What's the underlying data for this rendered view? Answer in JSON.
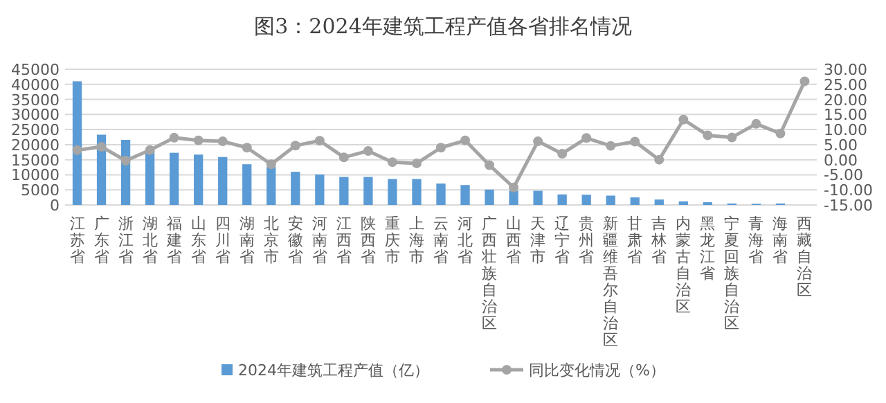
{
  "chart_data": {
    "type": "bar",
    "title": "图3：2024年建筑工程产值各省排名情况",
    "categories": [
      "江苏省",
      "广东省",
      "浙江省",
      "湖北省",
      "福建省",
      "山东省",
      "四川省",
      "湖南省",
      "北京市",
      "安徽省",
      "河南省",
      "江西省",
      "陕西省",
      "重庆市",
      "上海市",
      "云南省",
      "河北省",
      "广西壮族自治区",
      "山西省",
      "天津市",
      "辽宁省",
      "贵州省",
      "新疆维吾尔自治区",
      "甘肃省",
      "吉林省",
      "内蒙古自治区",
      "黑龙江省",
      "宁夏回族自治区",
      "青海省",
      "海南省",
      "西藏自治区"
    ],
    "series": [
      {
        "name": "2024年建筑工程产值（亿）",
        "color": "#5b9bd5",
        "values": [
          41000,
          23300,
          21600,
          18000,
          17300,
          16700,
          15900,
          13500,
          12600,
          11000,
          10100,
          9300,
          9300,
          8600,
          8600,
          7100,
          6600,
          5100,
          4700,
          4700,
          3500,
          3400,
          3100,
          2500,
          1800,
          1200,
          900,
          500,
          400,
          500,
          null
        ]
      },
      {
        "name": "同比变化情况（%）",
        "type": "line",
        "axis": "y2",
        "color": "#a5a5a5",
        "marker": "circle",
        "values": [
          3.2,
          4.3,
          -0.3,
          3.2,
          7.3,
          6.4,
          6.1,
          4.0,
          -1.5,
          4.7,
          6.3,
          0.8,
          2.9,
          -0.8,
          -1.2,
          4.0,
          6.4,
          -1.8,
          -9.2,
          6.1,
          2.0,
          7.2,
          4.6,
          6.0,
          0.0,
          13.3,
          8.1,
          7.4,
          11.9,
          8.7,
          26.0
        ]
      }
    ],
    "ylim": [
      0,
      45000
    ],
    "yticks": [
      0,
      5000,
      10000,
      15000,
      20000,
      25000,
      30000,
      35000,
      40000,
      45000
    ],
    "y2lim": [
      -15,
      30
    ],
    "y2ticks": [
      {
        "value": -15,
        "label": "-15.00"
      },
      {
        "value": -10,
        "label": "-10.00"
      },
      {
        "value": -5,
        "label": "-5.00"
      },
      {
        "value": 0,
        "label": "0.00"
      },
      {
        "value": 5,
        "label": "5.00"
      },
      {
        "value": 10,
        "label": "10.00"
      },
      {
        "value": 15,
        "label": "15.00"
      },
      {
        "value": 20,
        "label": "20.00"
      },
      {
        "value": 25,
        "label": "25.00"
      },
      {
        "value": 30,
        "label": "30.00"
      }
    ],
    "grid": "y",
    "legend": "bottom"
  }
}
